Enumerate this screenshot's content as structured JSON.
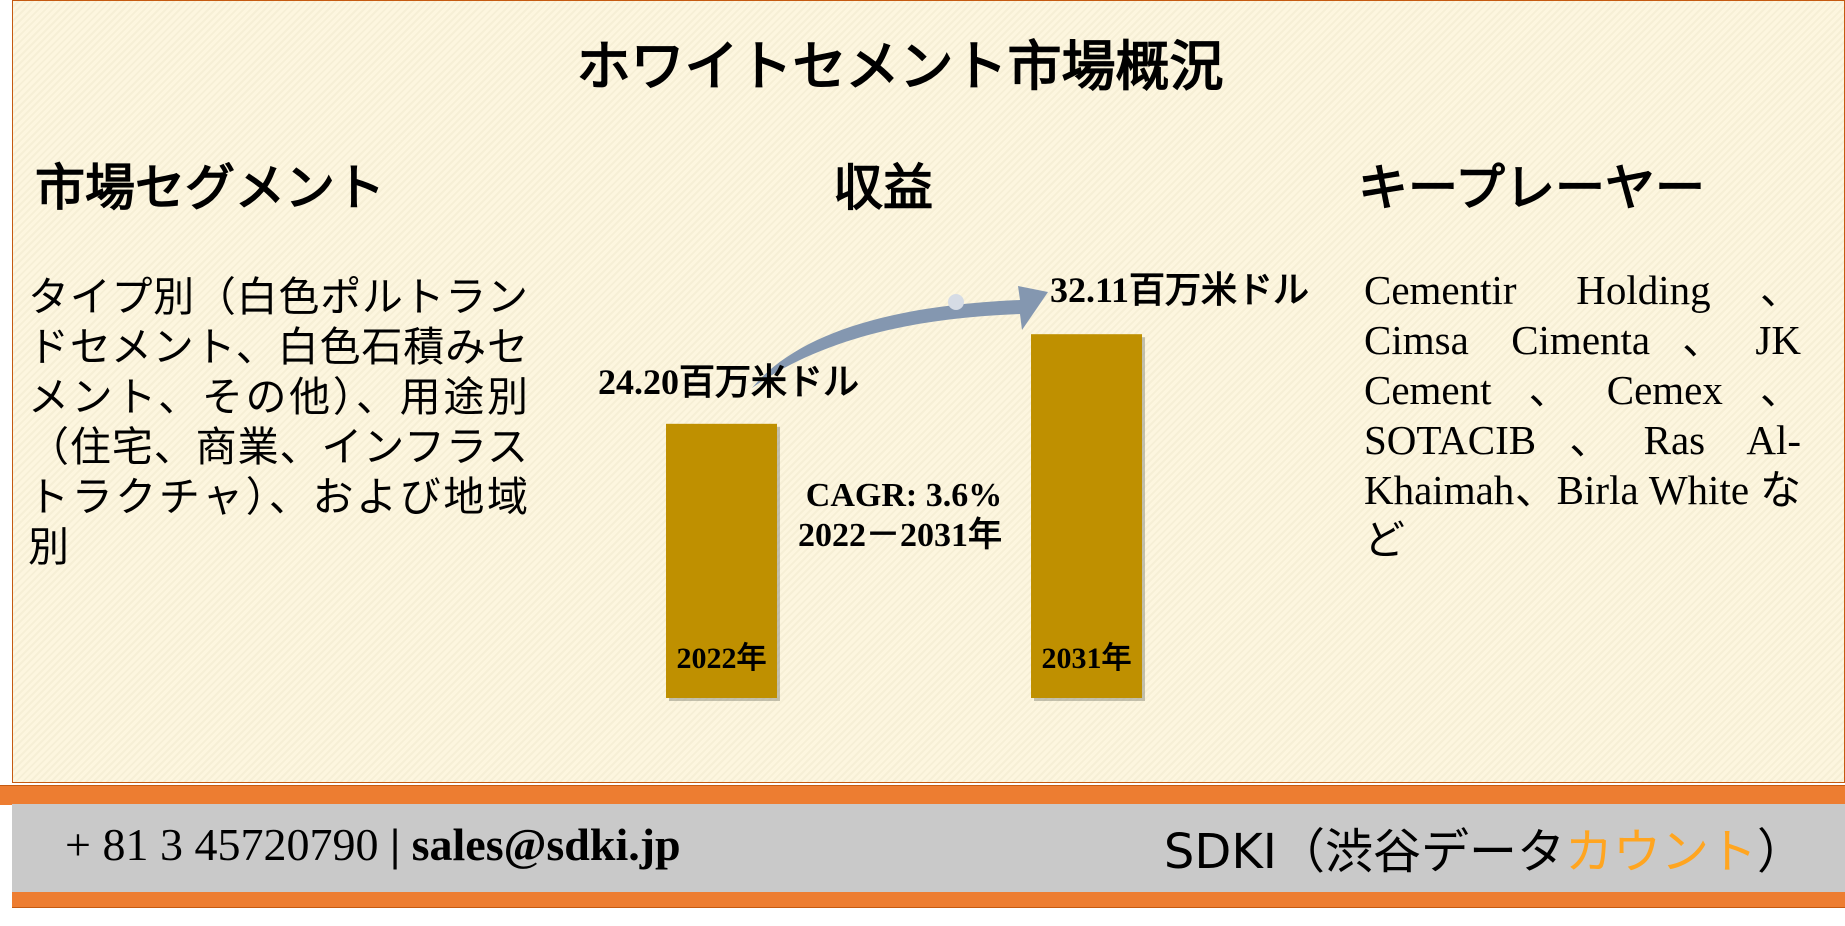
{
  "title": "ホワイトセメント市場概況",
  "segments": {
    "heading": "市場セグメント",
    "text": "タイプ別（白色ポルトランドセメント、白色石積みセメント、その他）、用途別（住宅、商業、インフラストラクチャ）、および地域別"
  },
  "revenue": {
    "heading": "収益",
    "bars": [
      {
        "value": 24.2,
        "value_label": "24.20百万米ドル",
        "year": "2022年"
      },
      {
        "value": 32.11,
        "value_label": "32.11百万米ドル",
        "year": "2031年"
      }
    ],
    "cagr": "CAGR: 3.6%",
    "period": "2022－2031年",
    "color": "#bf9000"
  },
  "players": {
    "heading": "キープレーヤー",
    "text": "Cementir Holding、Cimsa Cimenta、JK Cement、Cemex、SOTACIB、Ras Al-Khaimah、Birla White など"
  },
  "footer": {
    "phone": "+ 81 3 45720790",
    "separator": "|",
    "email": "sales@sdki.jp",
    "brand": "SDKI（渋谷データ",
    "brand_highlight": "カウント",
    "brand_end": "）"
  }
}
